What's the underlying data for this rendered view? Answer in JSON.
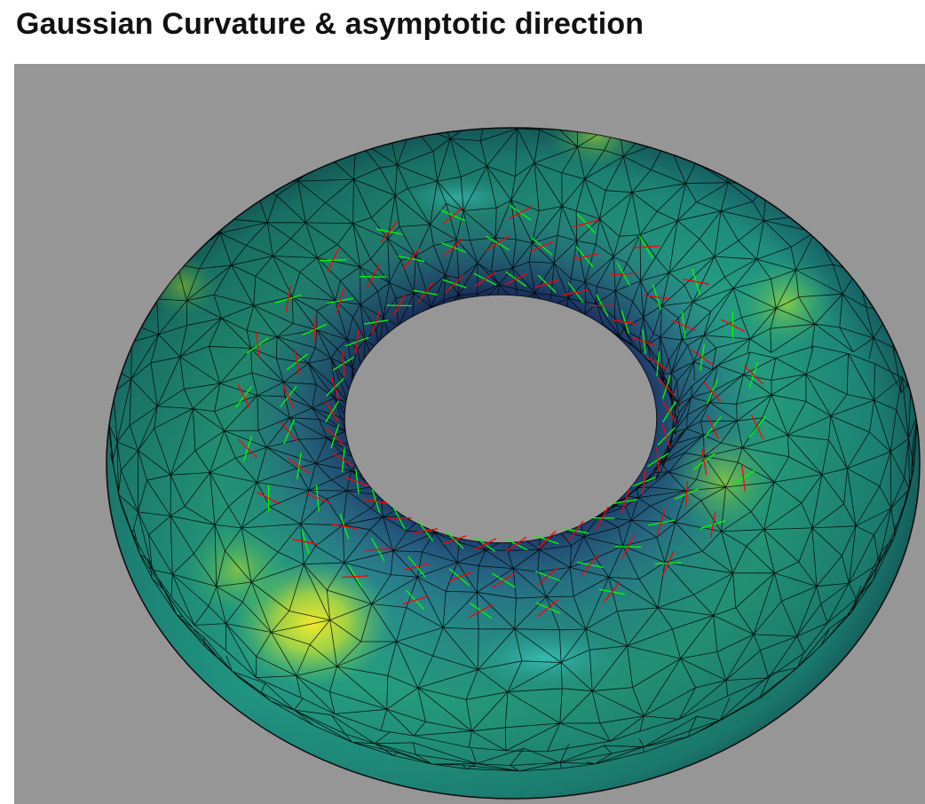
{
  "page": {
    "title": "Gaussian Curvature & asymptotic direction"
  },
  "viewport": {
    "background_color": "#969696",
    "object": "torus-mesh",
    "colormap": [
      "#3b3e78",
      "#2f6f8e",
      "#218f8c",
      "#2cb57a",
      "#7fd34e",
      "#e4e62a"
    ],
    "edge_color": "#000000",
    "direction_colors": {
      "first": "#00ff00",
      "second": "#ff0000"
    }
  }
}
